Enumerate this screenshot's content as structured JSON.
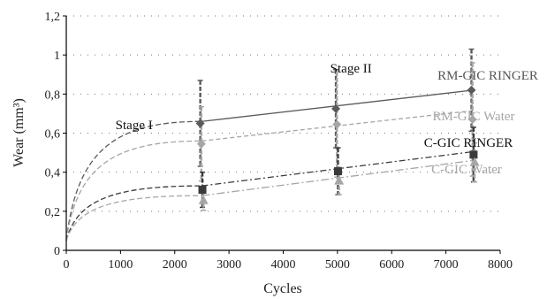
{
  "chart_data": {
    "type": "line",
    "xlabel": "Cycles",
    "ylabel": "Wear (mm³)",
    "xlim": [
      0,
      8000
    ],
    "ylim": [
      0,
      1.2
    ],
    "xticks": [
      0,
      1000,
      2000,
      3000,
      4000,
      5000,
      6000,
      7000,
      8000
    ],
    "yticks": [
      0,
      0.2,
      0.4,
      0.6,
      0.8,
      1,
      1.2
    ],
    "xtick_labels": [
      "0",
      "1000",
      "2000",
      "3000",
      "4000",
      "5000",
      "6000",
      "7000",
      "8000"
    ],
    "ytick_labels": [
      "0",
      "0,2",
      "0,4",
      "0,6",
      "0,8",
      "1",
      "1,2"
    ],
    "grid": "dotted",
    "legend": "none",
    "stage_labels": [
      {
        "text": "Stage I",
        "x": 1250,
        "y": 0.62
      },
      {
        "text": "Stage II",
        "x": 5250,
        "y": 0.91
      }
    ],
    "series": [
      {
        "name": "RM-GIC RINGER",
        "color": "#5a5a5a",
        "marker": "diamond",
        "x": [
          2500,
          5000,
          7500
        ],
        "y": [
          0.65,
          0.725,
          0.82
        ],
        "err": [
          0.22,
          0.2,
          0.21
        ],
        "trend": [
          [
            2500,
            0.66
          ],
          [
            7500,
            0.82
          ]
        ],
        "fit_start": [
          0,
          0.05
        ]
      },
      {
        "name": "RM-GIC Water",
        "color": "#a6a6a6",
        "marker": "diamond",
        "x": [
          2500,
          5000,
          7500
        ],
        "y": [
          0.545,
          0.645,
          0.67
        ],
        "err": [
          0.19,
          0.27,
          0.29
        ],
        "trend": [
          [
            2500,
            0.56
          ],
          [
            7500,
            0.715
          ]
        ],
        "fit_start": [
          0,
          0.05
        ]
      },
      {
        "name": "C-GIC RINGER",
        "color": "#3a3a3a",
        "marker": "square",
        "x": [
          2500,
          5000,
          7500
        ],
        "y": [
          0.31,
          0.405,
          0.49
        ],
        "err": [
          0.09,
          0.12,
          0.14
        ],
        "trend": [
          [
            2500,
            0.33
          ],
          [
            7500,
            0.505
          ]
        ],
        "fit_start": [
          0,
          0.05
        ]
      },
      {
        "name": "C-GIC Water",
        "color": "#a6a6a6",
        "marker": "triangle",
        "x": [
          2500,
          5000,
          7500
        ],
        "y": [
          0.255,
          0.355,
          0.45
        ],
        "err": [
          0.05,
          0.07,
          0.1
        ],
        "trend": [
          [
            2500,
            0.28
          ],
          [
            7500,
            0.46
          ]
        ],
        "fit_start": [
          0,
          0.05
        ]
      }
    ]
  }
}
